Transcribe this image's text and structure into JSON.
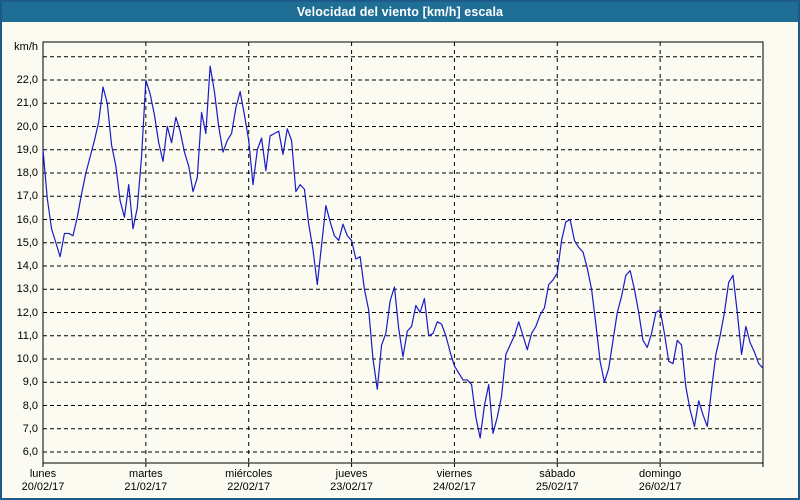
{
  "window": {
    "title": "Velocidad del viento [km/h] escala"
  },
  "colors": {
    "titlebar": "#1e6e96",
    "window_border": "#1b5a89",
    "background": "#fbfbf1",
    "grid": "#000000",
    "plot_border": "#000000",
    "line": "#1a1ac8",
    "title_text": "#ffffff",
    "axis_text": "#000000"
  },
  "chart_data": {
    "type": "line",
    "title": "Velocidad del viento [km/h] escala",
    "ylabel": "km/h",
    "legend": "none",
    "grid": "dashed",
    "ylim": [
      5.5,
      23.6
    ],
    "y_tick_values": [
      22,
      21,
      20,
      19,
      18,
      17,
      16,
      15,
      14,
      13,
      12,
      11,
      10,
      9,
      8,
      7,
      6
    ],
    "y_ticks": [
      "22,0",
      "21,0",
      "20,0",
      "19,0",
      "18,0",
      "17,0",
      "16,0",
      "15,0",
      "14,0",
      "13,0",
      "12,0",
      "11,0",
      "10,0",
      "9,0",
      "8,0",
      "7,0",
      "6,0"
    ],
    "grid_lines_y": [
      23,
      22,
      21,
      20,
      19,
      18,
      17,
      16,
      15,
      14,
      13,
      12,
      11,
      10,
      9,
      8,
      7,
      6
    ],
    "x_days": [
      {
        "name": "lunes",
        "date": "20/02/17"
      },
      {
        "name": "martes",
        "date": "21/02/17"
      },
      {
        "name": "miércoles",
        "date": "22/02/17"
      },
      {
        "name": "jueves",
        "date": "23/02/17"
      },
      {
        "name": "viernes",
        "date": "24/02/17"
      },
      {
        "name": "sábado",
        "date": "25/02/17"
      },
      {
        "name": "domingo",
        "date": "26/02/17"
      }
    ],
    "sampling_hours": 1,
    "series": [
      {
        "name": "velocidad del viento",
        "unit": "km/h",
        "color": "#1a1ac8",
        "values": [
          19.0,
          16.9,
          15.6,
          15.0,
          14.4,
          15.4,
          15.4,
          15.3,
          16.1,
          17.1,
          18.0,
          18.7,
          19.4,
          20.2,
          21.7,
          21.0,
          19.2,
          18.3,
          16.8,
          16.1,
          17.5,
          15.6,
          16.5,
          18.7,
          22.0,
          21.4,
          20.5,
          19.3,
          18.5,
          20.0,
          19.3,
          20.4,
          19.8,
          18.9,
          18.3,
          17.2,
          17.8,
          20.6,
          19.7,
          22.6,
          21.5,
          20.0,
          18.9,
          19.4,
          19.7,
          20.8,
          21.5,
          20.5,
          19.4,
          17.5,
          19.0,
          19.5,
          18.1,
          19.6,
          19.7,
          19.8,
          18.8,
          19.9,
          19.4,
          17.2,
          17.5,
          17.3,
          15.8,
          14.7,
          13.2,
          14.9,
          16.6,
          15.9,
          15.3,
          15.1,
          15.8,
          15.3,
          15.1,
          14.3,
          14.4,
          13.0,
          12.1,
          10.0,
          8.7,
          10.6,
          11.1,
          12.5,
          13.1,
          11.3,
          10.1,
          11.2,
          11.4,
          12.3,
          12.0,
          12.6,
          11.0,
          11.1,
          11.6,
          11.5,
          11.0,
          10.3,
          9.7,
          9.4,
          9.1,
          9.1,
          8.9,
          7.5,
          6.6,
          8.0,
          8.9,
          6.8,
          7.5,
          8.4,
          10.2,
          10.6,
          11.0,
          11.6,
          11.0,
          10.4,
          11.1,
          11.4,
          11.9,
          12.2,
          13.2,
          13.4,
          13.7,
          15.1,
          15.9,
          16.0,
          15.1,
          14.8,
          14.6,
          13.9,
          13.0,
          11.5,
          9.9,
          9.0,
          9.6,
          10.8,
          12.0,
          12.7,
          13.6,
          13.8,
          13.0,
          12.0,
          10.8,
          10.5,
          11.1,
          12.0,
          12.1,
          11.1,
          9.9,
          9.8,
          10.8,
          10.6,
          8.8,
          7.8,
          7.1,
          8.2,
          7.6,
          7.1,
          8.7,
          10.2,
          11.0,
          12.0,
          13.3,
          13.6,
          12.0,
          10.2,
          11.4,
          10.7,
          10.3,
          9.8,
          9.6
        ]
      }
    ]
  }
}
